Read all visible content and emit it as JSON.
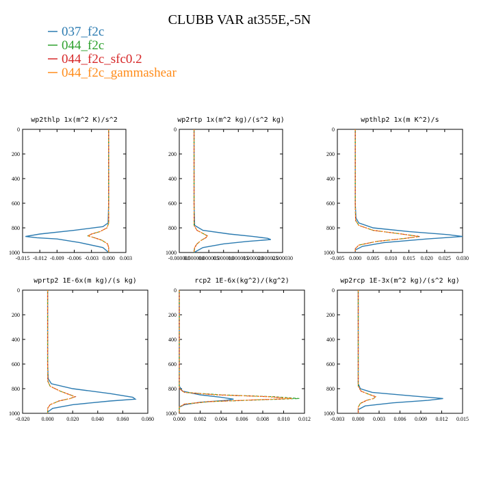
{
  "figure": {
    "title": "CLUBB VAR at355E,-5N"
  },
  "legend": [
    {
      "label": "037_f2c",
      "color": "#2a7ab0"
    },
    {
      "label": "044_f2c",
      "color": "#2ca02c"
    },
    {
      "label": "044_f2c_sfc0.2",
      "color": "#d62728"
    },
    {
      "label": "044_f2c_gammashear",
      "color": "#ff8c1a"
    }
  ],
  "chart_data": [
    {
      "type": "line",
      "title": "wp2thlp   1x(m^2 K)/s^2",
      "xlim": [
        -0.015,
        0.003
      ],
      "ylim": [
        1000,
        0
      ],
      "xticks": [
        -0.015,
        -0.012,
        -0.009,
        -0.006,
        -0.003,
        0.0,
        0.003
      ],
      "xtick_labels": [
        "-0.015",
        "-0.012",
        "-0.009",
        "-0.006",
        "-0.003",
        "0.000",
        "0.003"
      ],
      "yticks": [
        0,
        200,
        400,
        600,
        800,
        1000
      ],
      "series": [
        {
          "name": "037_f2c",
          "y": [
            0,
            200,
            400,
            600,
            760,
            790,
            820,
            850,
            870,
            880,
            890,
            920,
            960,
            1000
          ],
          "x": [
            0.0,
            0.0,
            0.0,
            0.0,
            -0.0001,
            -0.001,
            -0.006,
            -0.012,
            -0.0145,
            -0.0125,
            -0.009,
            -0.005,
            -0.001,
            0.0
          ]
        },
        {
          "name": "044_f2c",
          "y": [
            0,
            200,
            400,
            600,
            760,
            800,
            830,
            850,
            865,
            880,
            900,
            930,
            960,
            1000
          ],
          "x": [
            0.0,
            0.0,
            0.0,
            0.0,
            0.0,
            -0.0003,
            -0.0015,
            -0.003,
            -0.0036,
            -0.0025,
            -0.0012,
            -0.0002,
            0.0,
            0.0
          ]
        },
        {
          "name": "044_f2c_sfc0.2",
          "y": [
            0,
            200,
            400,
            600,
            760,
            800,
            830,
            850,
            865,
            880,
            900,
            930,
            960,
            1000
          ],
          "x": [
            0.0,
            0.0,
            0.0,
            0.0,
            0.0,
            -0.0003,
            -0.0015,
            -0.003,
            -0.0036,
            -0.0025,
            -0.0012,
            -0.0002,
            0.0,
            0.0
          ]
        },
        {
          "name": "044_f2c_gammashear",
          "y": [
            0,
            200,
            400,
            600,
            760,
            800,
            830,
            850,
            865,
            880,
            900,
            930,
            960,
            1000
          ],
          "x": [
            0.0,
            0.0,
            0.0,
            0.0,
            0.0,
            -0.0003,
            -0.0015,
            -0.003,
            -0.0036,
            -0.0025,
            -0.0012,
            -0.0002,
            0.0,
            0.0
          ]
        }
      ]
    },
    {
      "type": "line",
      "title": "wp2rtp   1x(m^2 kg)/(s^2 kg)",
      "xlim": [
        -5e-06,
        3e-05
      ],
      "ylim": [
        1000,
        0
      ],
      "xticks": [
        -5e-06,
        0.0,
        5e-06,
        1e-05,
        1.5e-05,
        2e-05,
        2.5e-05,
        3e-05
      ],
      "xtick_labels": [
        "-0.000005",
        "0.000000",
        "0.000005",
        "0.000010",
        "0.000015",
        "0.000020",
        "0.000025",
        "0.000030"
      ],
      "yticks": [
        0,
        200,
        400,
        600,
        800,
        1000
      ],
      "series": [
        {
          "name": "037_f2c",
          "y": [
            0,
            200,
            400,
            600,
            780,
            820,
            850,
            870,
            885,
            895,
            910,
            930,
            960,
            1000
          ],
          "x": [
            0.0,
            0.0,
            0.0,
            0.0,
            2e-07,
            3e-06,
            1.2e-05,
            2e-05,
            2.5e-05,
            2.6e-05,
            1.8e-05,
            1e-05,
            3e-06,
            0.0
          ]
        },
        {
          "name": "044_f2c",
          "y": [
            0,
            200,
            400,
            600,
            780,
            820,
            845,
            865,
            880,
            900,
            930,
            960,
            1000
          ],
          "x": [
            0.0,
            0.0,
            0.0,
            0.0,
            0.0,
            1e-06,
            3e-06,
            4.5e-06,
            4e-06,
            2.5e-06,
            1e-06,
            2e-07,
            0.0
          ]
        },
        {
          "name": "044_f2c_sfc0.2",
          "y": [
            0,
            200,
            400,
            600,
            780,
            820,
            845,
            865,
            880,
            900,
            930,
            960,
            1000
          ],
          "x": [
            0.0,
            0.0,
            0.0,
            0.0,
            0.0,
            1e-06,
            3e-06,
            4.5e-06,
            4e-06,
            2.5e-06,
            1e-06,
            2e-07,
            0.0
          ]
        },
        {
          "name": "044_f2c_gammashear",
          "y": [
            0,
            200,
            400,
            600,
            780,
            820,
            845,
            865,
            880,
            900,
            930,
            960,
            1000
          ],
          "x": [
            0.0,
            0.0,
            0.0,
            0.0,
            0.0,
            1e-06,
            3e-06,
            4.5e-06,
            4e-06,
            2.5e-06,
            1e-06,
            2e-07,
            0.0
          ]
        }
      ]
    },
    {
      "type": "line",
      "title": "wpthlp2   1x(m K^2)/s",
      "xlim": [
        -0.005,
        0.03
      ],
      "ylim": [
        1000,
        0
      ],
      "xticks": [
        -0.005,
        0.0,
        0.005,
        0.01,
        0.015,
        0.02,
        0.025,
        0.03
      ],
      "xtick_labels": [
        "-0.005",
        "0.000",
        "0.005",
        "0.010",
        "0.015",
        "0.020",
        "0.025",
        "0.030"
      ],
      "yticks": [
        0,
        200,
        400,
        600,
        800,
        1000
      ],
      "series": [
        {
          "name": "037_f2c",
          "y": [
            0,
            200,
            400,
            600,
            720,
            760,
            800,
            830,
            855,
            870,
            890,
            920,
            950,
            980,
            1000
          ],
          "x": [
            0.0,
            0.0,
            0.0,
            0.0,
            0.0002,
            0.001,
            0.005,
            0.015,
            0.026,
            0.03,
            0.02,
            0.008,
            0.002,
            0.0,
            0.0
          ]
        },
        {
          "name": "044_f2c",
          "y": [
            0,
            200,
            400,
            600,
            740,
            780,
            820,
            850,
            870,
            885,
            910,
            940,
            970,
            1000
          ],
          "x": [
            0.0,
            0.0,
            0.0,
            0.0,
            0.0001,
            0.001,
            0.005,
            0.013,
            0.018,
            0.014,
            0.006,
            0.001,
            0.0,
            0.0
          ]
        },
        {
          "name": "044_f2c_sfc0.2",
          "y": [
            0,
            200,
            400,
            600,
            740,
            780,
            820,
            850,
            870,
            885,
            910,
            940,
            970,
            1000
          ],
          "x": [
            0.0,
            0.0,
            0.0,
            0.0,
            0.0001,
            0.001,
            0.005,
            0.013,
            0.018,
            0.014,
            0.006,
            0.001,
            0.0,
            0.0
          ]
        },
        {
          "name": "044_f2c_gammashear",
          "y": [
            0,
            200,
            400,
            600,
            740,
            780,
            820,
            850,
            870,
            885,
            910,
            940,
            970,
            1000
          ],
          "x": [
            0.0,
            0.0,
            0.0,
            0.0,
            0.0001,
            0.001,
            0.005,
            0.013,
            0.0175,
            0.014,
            0.006,
            0.001,
            0.0,
            0.0
          ]
        }
      ]
    },
    {
      "type": "line",
      "title": "wprtp2   1E-6x(m kg)/(s kg)",
      "xlim": [
        -0.02,
        0.08
      ],
      "ylim": [
        1000,
        0
      ],
      "xticks": [
        -0.02,
        0.0,
        0.02,
        0.04,
        0.06,
        0.08
      ],
      "xtick_labels": [
        "-0.020",
        "0.000",
        "0.020",
        "0.040",
        "0.060",
        "0.080"
      ],
      "yticks": [
        0,
        200,
        400,
        600,
        800,
        1000
      ],
      "series": [
        {
          "name": "037_f2c",
          "y": [
            0,
            200,
            400,
            600,
            720,
            760,
            800,
            840,
            870,
            885,
            900,
            930,
            960,
            990,
            1000
          ],
          "x": [
            0.0,
            0.0,
            0.0,
            0.0,
            0.0005,
            0.003,
            0.02,
            0.05,
            0.068,
            0.07,
            0.05,
            0.02,
            0.004,
            0.0,
            0.0
          ]
        },
        {
          "name": "044_f2c",
          "y": [
            0,
            200,
            400,
            600,
            740,
            780,
            820,
            850,
            865,
            880,
            900,
            930,
            960,
            1000
          ],
          "x": [
            0.0,
            0.0,
            0.0,
            0.0,
            0.0002,
            0.002,
            0.01,
            0.018,
            0.022,
            0.018,
            0.009,
            0.002,
            0.0,
            0.0
          ]
        },
        {
          "name": "044_f2c_sfc0.2",
          "y": [
            0,
            200,
            400,
            600,
            740,
            780,
            820,
            850,
            865,
            880,
            900,
            930,
            960,
            1000
          ],
          "x": [
            0.0,
            0.0,
            0.0,
            0.0,
            0.0002,
            0.002,
            0.01,
            0.018,
            0.022,
            0.018,
            0.009,
            0.002,
            0.0,
            0.0
          ]
        },
        {
          "name": "044_f2c_gammashear",
          "y": [
            0,
            200,
            400,
            600,
            740,
            780,
            820,
            850,
            865,
            880,
            900,
            930,
            960,
            1000
          ],
          "x": [
            0.0,
            0.0,
            0.0,
            0.0,
            0.0002,
            0.002,
            0.01,
            0.018,
            0.0215,
            0.018,
            0.009,
            0.002,
            0.0,
            0.0
          ]
        }
      ]
    },
    {
      "type": "line",
      "title": "rcp2   1E-6x(kg^2)/(kg^2)",
      "xlim": [
        0.0,
        0.012
      ],
      "ylim": [
        1000,
        0
      ],
      "xticks": [
        0.0,
        0.002,
        0.004,
        0.006,
        0.008,
        0.01,
        0.012
      ],
      "xtick_labels": [
        "0.000",
        "0.002",
        "0.004",
        "0.006",
        "0.008",
        "0.010",
        "0.012"
      ],
      "yticks": [
        0,
        200,
        400,
        600,
        800,
        1000
      ],
      "series": [
        {
          "name": "037_f2c",
          "y": [
            0,
            200,
            400,
            600,
            780,
            820,
            850,
            870,
            885,
            895,
            910,
            930,
            950,
            1000
          ],
          "x": [
            0.0,
            0.0,
            0.0,
            0.0,
            0.0,
            0.0003,
            0.002,
            0.004,
            0.0052,
            0.0045,
            0.002,
            0.0005,
            0.0,
            0.0
          ]
        },
        {
          "name": "044_f2c",
          "y": [
            0,
            200,
            400,
            600,
            800,
            830,
            850,
            865,
            880,
            890,
            905,
            925,
            950,
            1000
          ],
          "x": [
            0.0,
            0.0,
            0.0,
            0.0,
            0.0,
            0.0005,
            0.004,
            0.009,
            0.0115,
            0.008,
            0.003,
            0.0005,
            0.0,
            0.0
          ]
        },
        {
          "name": "044_f2c_sfc0.2",
          "y": [
            0,
            200,
            400,
            600,
            800,
            830,
            850,
            865,
            880,
            890,
            905,
            925,
            950,
            1000
          ],
          "x": [
            0.0,
            0.0,
            0.0,
            0.0,
            0.0,
            0.0005,
            0.0035,
            0.0085,
            0.0108,
            0.0075,
            0.0028,
            0.0005,
            0.0,
            0.0
          ]
        },
        {
          "name": "044_f2c_gammashear",
          "y": [
            0,
            200,
            400,
            600,
            800,
            830,
            850,
            865,
            880,
            890,
            905,
            925,
            950,
            1000
          ],
          "x": [
            0.0,
            0.0,
            0.0,
            0.0,
            0.0,
            0.0005,
            0.0035,
            0.0085,
            0.0108,
            0.0075,
            0.0028,
            0.0005,
            0.0,
            0.0
          ]
        }
      ]
    },
    {
      "type": "line",
      "title": "wp2rcp   1E-3x(m^2 kg)/(s^2 kg)",
      "xlim": [
        -0.003,
        0.015
      ],
      "ylim": [
        1000,
        0
      ],
      "xticks": [
        -0.003,
        0.0,
        0.003,
        0.006,
        0.009,
        0.012,
        0.015
      ],
      "xtick_labels": [
        "-0.003",
        "0.000",
        "0.003",
        "0.006",
        "0.009",
        "0.012",
        "0.015"
      ],
      "yticks": [
        0,
        200,
        400,
        600,
        800,
        1000
      ],
      "series": [
        {
          "name": "037_f2c",
          "y": [
            0,
            200,
            400,
            600,
            760,
            800,
            830,
            860,
            880,
            895,
            915,
            940,
            970,
            1000
          ],
          "x": [
            0.0,
            0.0,
            0.0,
            0.0,
            0.0,
            0.0003,
            0.002,
            0.008,
            0.0122,
            0.01,
            0.005,
            0.001,
            0.0,
            0.0
          ]
        },
        {
          "name": "044_f2c",
          "y": [
            0,
            200,
            400,
            600,
            780,
            820,
            845,
            865,
            880,
            895,
            920,
            950,
            1000
          ],
          "x": [
            0.0,
            0.0,
            0.0,
            0.0,
            0.0,
            0.0004,
            0.0015,
            0.0025,
            0.0022,
            0.0012,
            0.0003,
            0.0,
            0.0
          ]
        },
        {
          "name": "044_f2c_sfc0.2",
          "y": [
            0,
            200,
            400,
            600,
            780,
            820,
            845,
            865,
            880,
            895,
            920,
            950,
            1000
          ],
          "x": [
            0.0,
            0.0,
            0.0,
            0.0,
            0.0,
            0.0004,
            0.0015,
            0.0025,
            0.0022,
            0.0012,
            0.0003,
            0.0,
            0.0
          ]
        },
        {
          "name": "044_f2c_gammashear",
          "y": [
            0,
            200,
            400,
            600,
            780,
            820,
            845,
            865,
            880,
            895,
            920,
            950,
            1000
          ],
          "x": [
            0.0,
            0.0,
            0.0,
            0.0,
            0.0,
            0.0004,
            0.0015,
            0.0025,
            0.0022,
            0.0012,
            0.0003,
            0.0,
            0.0
          ]
        }
      ]
    }
  ]
}
